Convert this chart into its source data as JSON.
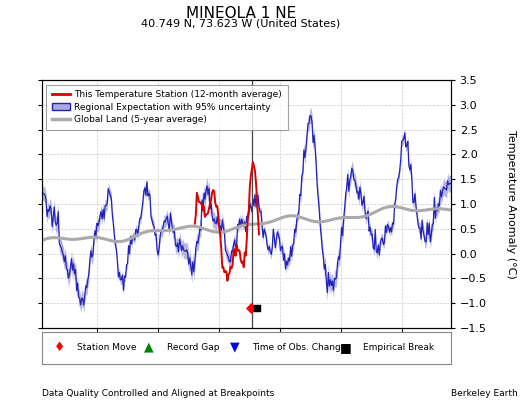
{
  "title": "MINEOLA 1 NE",
  "subtitle": "40.749 N, 73.623 W (United States)",
  "ylabel": "Temperature Anomaly (°C)",
  "xlim": [
    1980.5,
    2014.0
  ],
  "ylim": [
    -1.5,
    3.5
  ],
  "yticks": [
    -1.5,
    -1.0,
    -0.5,
    0.0,
    0.5,
    1.0,
    1.5,
    2.0,
    2.5,
    3.0,
    3.5
  ],
  "xticks": [
    1985,
    1990,
    1995,
    2000,
    2005,
    2010
  ],
  "footer_left": "Data Quality Controlled and Aligned at Breakpoints",
  "footer_right": "Berkeley Earth",
  "vertical_line_x": 1997.75,
  "station_move_x": 1997.6,
  "station_move_y": -1.1,
  "empirical_break_x": 1998.1,
  "empirical_break_y": -1.1,
  "regional_color": "#2222bb",
  "regional_fill_color": "#aaaadd",
  "station_color": "#dd0000",
  "global_color": "#aaaaaa",
  "background_color": "#ffffff",
  "grid_color": "#cccccc",
  "legend_station": "This Temperature Station (12-month average)",
  "legend_regional": "Regional Expectation with 95% uncertainty",
  "legend_global": "Global Land (5-year average)"
}
